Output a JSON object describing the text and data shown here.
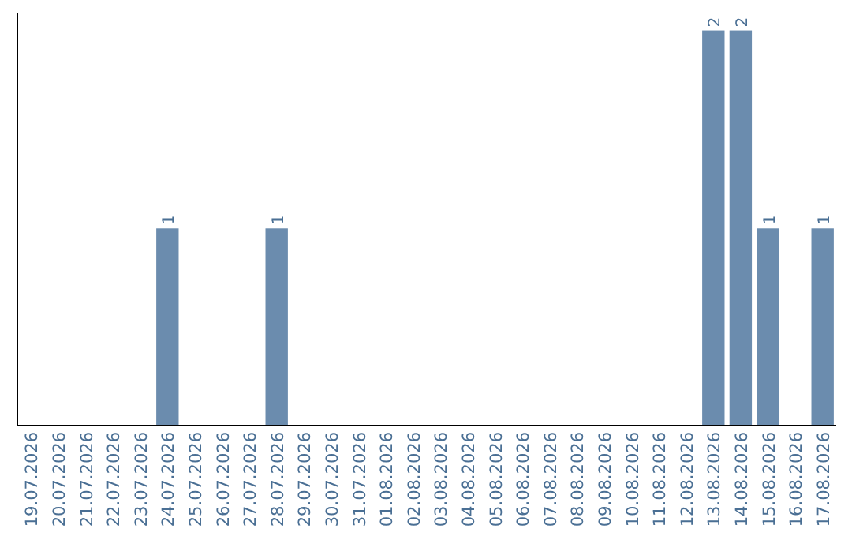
{
  "chart_data": {
    "type": "bar",
    "categories": [
      "19.07.2026",
      "20.07.2026",
      "21.07.2026",
      "22.07.2026",
      "23.07.2026",
      "24.07.2026",
      "25.07.2026",
      "26.07.2026",
      "27.07.2026",
      "28.07.2026",
      "29.07.2026",
      "30.07.2026",
      "31.07.2026",
      "01.08.2026",
      "02.08.2026",
      "03.08.2026",
      "04.08.2026",
      "05.08.2026",
      "06.08.2026",
      "07.08.2026",
      "08.08.2026",
      "09.08.2026",
      "10.08.2026",
      "11.08.2026",
      "12.08.2026",
      "13.08.2026",
      "14.08.2026",
      "15.08.2026",
      "16.08.2026",
      "17.08.2026"
    ],
    "values": [
      0,
      0,
      0,
      0,
      0,
      1,
      0,
      0,
      0,
      1,
      0,
      0,
      0,
      0,
      0,
      0,
      0,
      0,
      0,
      0,
      0,
      0,
      0,
      0,
      0,
      2,
      2,
      1,
      0,
      1
    ],
    "value_labels": [
      null,
      null,
      null,
      null,
      null,
      "1",
      null,
      null,
      null,
      "1",
      null,
      null,
      null,
      null,
      null,
      null,
      null,
      null,
      null,
      null,
      null,
      null,
      null,
      null,
      null,
      "2",
      "2",
      "1",
      null,
      "1"
    ],
    "color": "#6b8cae",
    "tick_labels": "x"
  }
}
